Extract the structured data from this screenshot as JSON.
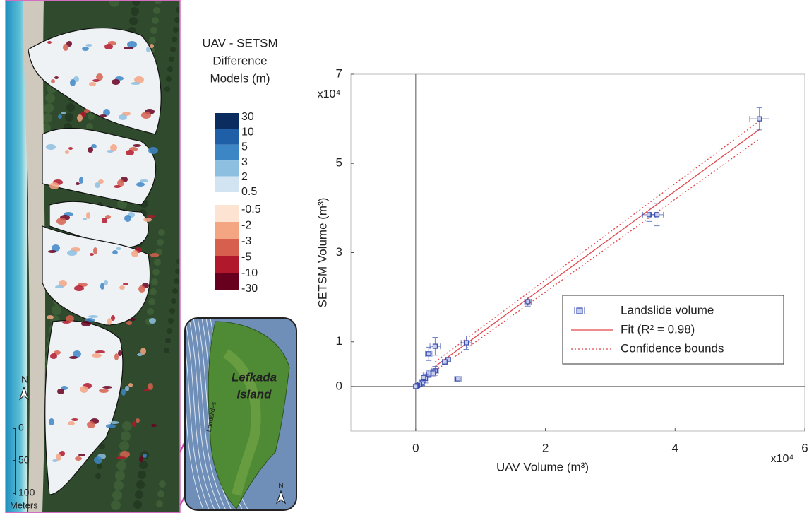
{
  "map": {
    "legend_title": [
      "UAV - SETSM",
      "Difference",
      "Models (m)"
    ],
    "colorbar": {
      "positive_labels": [
        30,
        10,
        5,
        3,
        2,
        0.5
      ],
      "positive_colors": [
        "#0b2c5f",
        "#1f5fa8",
        "#3d86c6",
        "#8dbfe0",
        "#d2e4f2"
      ],
      "negative_labels": [
        -0.5,
        -2,
        -3,
        -5,
        -10,
        -30
      ],
      "negative_colors": [
        "#fde3d2",
        "#f4a582",
        "#d6604d",
        "#b2182b",
        "#67001f"
      ]
    },
    "north": "N",
    "scale_bar": [
      0,
      50,
      100
    ],
    "scale_unit": "Meters",
    "inset": {
      "title": [
        "Lefkada",
        "Island"
      ],
      "site": "Landslides",
      "north": "N"
    }
  },
  "chart_data": {
    "type": "scatter",
    "xlabel": "UAV Volume (m³)",
    "ylabel": "SETSM Volume (m³)",
    "x_multiplier": "x10⁴",
    "y_multiplier": "x10⁴",
    "xlim": [
      -1,
      6
    ],
    "xticks": [
      0,
      2,
      4,
      6
    ],
    "ylim": [
      -1,
      7
    ],
    "yticks": [
      0,
      1,
      3,
      5,
      7
    ],
    "legend": "lower right",
    "series": [
      {
        "name": "Landslide volume",
        "color": "#3a4fb0",
        "x": [
          5.3,
          3.6,
          3.72,
          1.73,
          0.78,
          0.3,
          0.2,
          0.65,
          0.5,
          0.45,
          0.3,
          0.27,
          0.2,
          0.15,
          0.12,
          0.1,
          0.06,
          0.03,
          0.01,
          0.0
        ],
        "values": [
          6.0,
          3.85,
          3.85,
          1.9,
          0.98,
          0.9,
          0.73,
          0.17,
          0.6,
          0.55,
          0.35,
          0.3,
          0.28,
          0.18,
          0.2,
          0.08,
          0.05,
          0.02,
          0.01,
          0.0
        ],
        "xerr": [
          0.15,
          0.1,
          0.1,
          0.05,
          0.08,
          0.08,
          0.05,
          0.05,
          0.04,
          0.04,
          0.05,
          0.04,
          0.04,
          0.03,
          0.03,
          0.03,
          0.02,
          0.02,
          0.02,
          0.02
        ],
        "yerr": [
          0.25,
          0.15,
          0.25,
          0.1,
          0.15,
          0.2,
          0.15,
          0.04,
          0.05,
          0.05,
          0.1,
          0.08,
          0.08,
          0.1,
          0.12,
          0.06,
          0.04,
          0.03,
          0.03,
          0.03
        ]
      },
      {
        "name": "Fit (R² = 0.98)",
        "color": "#e0474c",
        "x": [
          0.3,
          5.3
        ],
        "values": [
          0.45,
          5.76
        ]
      },
      {
        "name": "Confidence bounds",
        "color": "#e0474c",
        "x": [
          0.3,
          5.3
        ],
        "upper": [
          0.55,
          5.95
        ],
        "lower": [
          0.35,
          5.55
        ]
      }
    ]
  }
}
